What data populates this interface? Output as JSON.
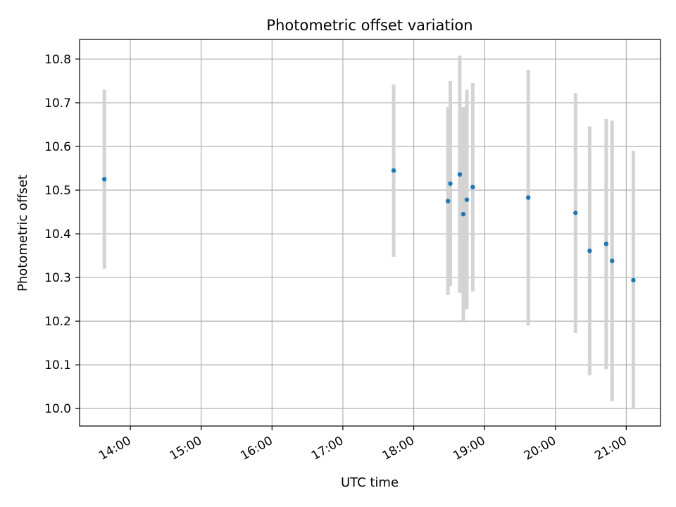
{
  "chart_data": {
    "type": "scatter",
    "title": "Photometric offset variation",
    "xlabel": "UTC time",
    "ylabel": "Photometric offset",
    "x_axis": {
      "type": "time",
      "range": [
        "13:17",
        "21:29"
      ],
      "ticks": [
        "14:00",
        "15:00",
        "16:00",
        "17:00",
        "18:00",
        "19:00",
        "20:00",
        "21:00"
      ]
    },
    "y_axis": {
      "range": [
        9.96,
        10.845
      ],
      "ticks": [
        10.0,
        10.1,
        10.2,
        10.3,
        10.4,
        10.5,
        10.6,
        10.7,
        10.8
      ],
      "tick_labels": [
        "10.0",
        "10.1",
        "10.2",
        "10.3",
        "10.4",
        "10.5",
        "10.6",
        "10.7",
        "10.8"
      ]
    },
    "grid": true,
    "colors": {
      "points": "#1f77b4",
      "error_bars": "#d3d3d3",
      "grid": "#b0b0b0"
    },
    "points": [
      {
        "time": "13:38",
        "value": 10.525,
        "low": 10.32,
        "high": 10.73
      },
      {
        "time": "17:43",
        "value": 10.545,
        "low": 10.347,
        "high": 10.742
      },
      {
        "time": "18:29",
        "value": 10.475,
        "low": 10.26,
        "high": 10.69
      },
      {
        "time": "18:31",
        "value": 10.515,
        "low": 10.28,
        "high": 10.75
      },
      {
        "time": "18:39",
        "value": 10.536,
        "low": 10.265,
        "high": 10.808
      },
      {
        "time": "18:42",
        "value": 10.445,
        "low": 10.2,
        "high": 10.69
      },
      {
        "time": "18:45",
        "value": 10.478,
        "low": 10.227,
        "high": 10.73
      },
      {
        "time": "18:50",
        "value": 10.507,
        "low": 10.268,
        "high": 10.745
      },
      {
        "time": "19:37",
        "value": 10.483,
        "low": 10.19,
        "high": 10.775
      },
      {
        "time": "20:17",
        "value": 10.448,
        "low": 10.173,
        "high": 10.722
      },
      {
        "time": "20:29",
        "value": 10.361,
        "low": 10.076,
        "high": 10.646
      },
      {
        "time": "20:43",
        "value": 10.377,
        "low": 10.09,
        "high": 10.663
      },
      {
        "time": "20:48",
        "value": 10.338,
        "low": 10.017,
        "high": 10.659
      },
      {
        "time": "21:06",
        "value": 10.294,
        "low": 9.998,
        "high": 10.59
      }
    ]
  }
}
